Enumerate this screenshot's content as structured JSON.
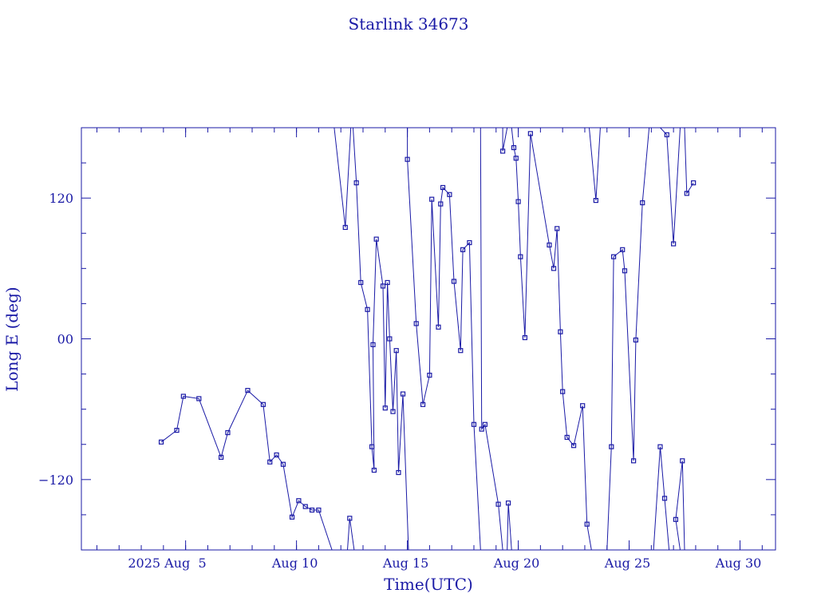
{
  "chart_data": {
    "type": "line",
    "title": "Starlink 34673",
    "xlabel": "Time(UTC)",
    "ylabel": "Long E (deg)",
    "x_unit": "day of August 2025 (UTC)",
    "xlim": [
      31.3,
      62.6
    ],
    "ylim": [
      -180,
      180
    ],
    "x_tick_labels": [
      {
        "x": 36,
        "label": "2025 Aug  5"
      },
      {
        "x": 41,
        "label": "Aug 10"
      },
      {
        "x": 46,
        "label": "Aug 15"
      },
      {
        "x": 51,
        "label": "Aug 20"
      },
      {
        "x": 56,
        "label": "Aug 25"
      },
      {
        "x": 61,
        "label": "Aug 30"
      }
    ],
    "y_tick_labels": [
      {
        "y": -120,
        "label": "−120"
      },
      {
        "y": 0,
        "label": "00"
      },
      {
        "y": 120,
        "label": "120"
      }
    ],
    "x_major_ticks": [
      31,
      32,
      33,
      34,
      35,
      36,
      37,
      38,
      39,
      40,
      41,
      42,
      43,
      44,
      45,
      46,
      47,
      48,
      49,
      50,
      51,
      52,
      53,
      54,
      55,
      56,
      57,
      58,
      59,
      60,
      61,
      62
    ],
    "y_minor_ticks": [
      -150,
      -90,
      -60,
      -30,
      30,
      60,
      90,
      150
    ],
    "grid": false,
    "color": "#1a1aa6",
    "series": [
      {
        "marker": "square",
        "segments": [
          [
            [
              34.9,
              -88
            ],
            [
              35.6,
              -78
            ],
            [
              35.9,
              -49
            ],
            [
              36.6,
              -51
            ],
            [
              37.6,
              -101
            ],
            [
              37.9,
              -80
            ],
            [
              38.8,
              -44
            ],
            [
              39.5,
              -56
            ],
            [
              39.8,
              -105
            ],
            [
              40.1,
              -99
            ],
            [
              40.4,
              -107
            ],
            [
              40.8,
              -152
            ],
            [
              41.1,
              -138
            ],
            [
              41.4,
              -143
            ],
            [
              41.7,
              -146
            ],
            [
              42.0,
              -146
            ],
            [
              42.6,
              -180
            ]
          ],
          [
            [
              43.3,
              -180
            ],
            [
              43.4,
              -153
            ],
            [
              43.6,
              -180
            ]
          ],
          [
            [
              42.7,
              180
            ],
            [
              43.2,
              95
            ],
            [
              43.45,
              180
            ]
          ],
          [
            [
              43.55,
              180
            ],
            [
              43.7,
              133
            ],
            [
              43.9,
              48
            ],
            [
              44.2,
              25
            ],
            [
              44.4,
              -92
            ],
            [
              44.5,
              -112
            ],
            [
              44.45,
              -5
            ],
            [
              44.6,
              85
            ],
            [
              44.9,
              45
            ],
            [
              45.0,
              -59
            ],
            [
              45.1,
              48
            ],
            [
              45.2,
              0
            ],
            [
              45.35,
              -62
            ],
            [
              45.5,
              -10
            ],
            [
              45.6,
              -114
            ],
            [
              45.8,
              -47
            ],
            [
              46.05,
              -180
            ]
          ],
          [
            [
              46.0,
              180
            ],
            [
              46.0,
              153
            ],
            [
              46.4,
              13
            ],
            [
              46.7,
              -56
            ],
            [
              47.0,
              -31
            ],
            [
              47.1,
              119
            ],
            [
              47.4,
              10
            ],
            [
              47.5,
              115
            ],
            [
              47.6,
              129
            ],
            [
              47.9,
              123
            ],
            [
              48.1,
              49
            ],
            [
              48.4,
              -10
            ],
            [
              48.5,
              76
            ],
            [
              48.8,
              82
            ],
            [
              49.0,
              -73
            ],
            [
              49.3,
              -180
            ]
          ],
          [
            [
              49.3,
              180
            ],
            [
              49.35,
              -77
            ],
            [
              49.5,
              -73
            ],
            [
              50.1,
              -141
            ],
            [
              50.3,
              -180
            ]
          ],
          [
            [
              50.3,
              180
            ],
            [
              50.3,
              160
            ],
            [
              50.5,
              180
            ]
          ],
          [
            [
              50.5,
              -180
            ],
            [
              50.55,
              -140
            ],
            [
              50.7,
              -180
            ]
          ],
          [
            [
              50.7,
              180
            ],
            [
              50.8,
              163
            ],
            [
              50.9,
              154
            ],
            [
              51.0,
              117
            ],
            [
              51.1,
              70
            ],
            [
              51.3,
              1
            ],
            [
              51.55,
              175
            ],
            [
              52.4,
              80
            ],
            [
              52.6,
              60
            ],
            [
              52.75,
              94
            ],
            [
              52.9,
              6
            ],
            [
              53.0,
              -45
            ],
            [
              53.2,
              -84
            ],
            [
              53.5,
              -91
            ],
            [
              53.9,
              -57
            ],
            [
              54.1,
              -158
            ],
            [
              54.3,
              -180
            ]
          ],
          [
            [
              54.2,
              180
            ],
            [
              54.5,
              118
            ],
            [
              54.7,
              180
            ]
          ],
          [
            [
              55.0,
              -180
            ],
            [
              55.2,
              -92
            ],
            [
              55.3,
              70
            ],
            [
              55.7,
              76
            ],
            [
              55.8,
              58
            ],
            [
              56.2,
              -104
            ],
            [
              56.3,
              -1
            ],
            [
              56.6,
              116
            ],
            [
              56.9,
              180
            ]
          ],
          [
            [
              57.1,
              -180
            ],
            [
              57.4,
              -92
            ],
            [
              57.6,
              -136
            ],
            [
              57.8,
              -180
            ]
          ],
          [
            [
              57.4,
              180
            ],
            [
              57.7,
              174
            ],
            [
              58.0,
              81
            ],
            [
              58.3,
              180
            ]
          ],
          [
            [
              58.3,
              -180
            ],
            [
              58.1,
              -154
            ],
            [
              58.4,
              -104
            ],
            [
              58.5,
              -180
            ]
          ],
          [
            [
              58.5,
              180
            ],
            [
              58.6,
              124
            ],
            [
              58.9,
              133
            ]
          ]
        ]
      }
    ]
  }
}
